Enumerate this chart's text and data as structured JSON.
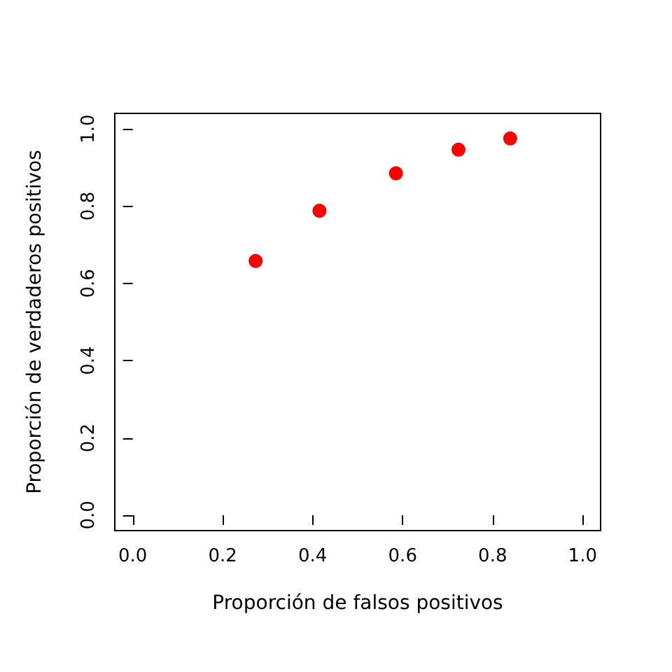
{
  "chart_data": {
    "type": "scatter",
    "xlabel": "Proporción de falsos positivos",
    "ylabel": "Proporción de verdaderos positivos",
    "x": [
      0.273,
      0.415,
      0.585,
      0.724,
      0.839
    ],
    "series": [
      {
        "color": "#ff0000",
        "values": [
          0.658,
          0.788,
          0.885,
          0.946,
          0.975
        ]
      }
    ],
    "xlim": [
      -0.04,
      1.04
    ],
    "ylim": [
      -0.04,
      1.04
    ],
    "xticks": [
      {
        "value": 0,
        "label": "0.0"
      },
      {
        "value": 0.2,
        "label": "0.2"
      },
      {
        "value": 0.4,
        "label": "0.4"
      },
      {
        "value": 0.6,
        "label": "0.6"
      },
      {
        "value": 0.8,
        "label": "0.8"
      },
      {
        "value": 1,
        "label": "1.0"
      }
    ],
    "yticks": [
      {
        "value": 0,
        "label": "0.0"
      },
      {
        "value": 0.2,
        "label": "0.2"
      },
      {
        "value": 0.4,
        "label": "0.4"
      },
      {
        "value": 0.6,
        "label": "0.6"
      },
      {
        "value": 0.8,
        "label": "0.8"
      },
      {
        "value": 1,
        "label": "1.0"
      }
    ],
    "marker": "circle",
    "grid": false
  }
}
